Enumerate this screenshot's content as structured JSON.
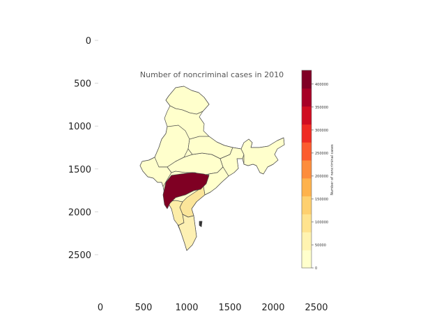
{
  "figure": {
    "title": "Number of noncriminal cases in 2010",
    "colorbar_label": "Number of noncriminal cases",
    "colorbar_ticks": [
      "0",
      "50000",
      "100000",
      "150000",
      "200000",
      "250000",
      "300000",
      "350000",
      "400000"
    ],
    "colorbar_tick_values": [
      0,
      50000,
      100000,
      150000,
      200000,
      250000,
      300000,
      350000,
      400000
    ],
    "colorbar_max": 430000,
    "colorbar_palette": [
      "#ffffcc",
      "#fff3b0",
      "#ffe38e",
      "#fed06f",
      "#feb24c",
      "#fd8d3c",
      "#fc5b2e",
      "#ef2a22",
      "#d00d21",
      "#a70026",
      "#800026"
    ]
  },
  "axes": {
    "x_ticks": [
      "0",
      "500",
      "1000",
      "1500",
      "2000",
      "2500"
    ],
    "y_ticks": [
      "0",
      "500",
      "1000",
      "1500",
      "2000",
      "2500"
    ],
    "x_tick_values": [
      0,
      500,
      1000,
      1500,
      2000,
      2500
    ],
    "y_tick_values": [
      0,
      500,
      1000,
      1500,
      2000,
      2500
    ],
    "y_inverted": true
  },
  "chart_data": {
    "type": "choropleth",
    "colormap": "YlOrRd",
    "highlight_region_color": "#7f0023",
    "base_region_color": "#ffffcc",
    "mid_region_color": "#fbe59a",
    "xlim": [
      0,
      2500
    ],
    "ylim": [
      2800,
      0
    ],
    "colorbar_range": [
      0,
      430000
    ]
  }
}
